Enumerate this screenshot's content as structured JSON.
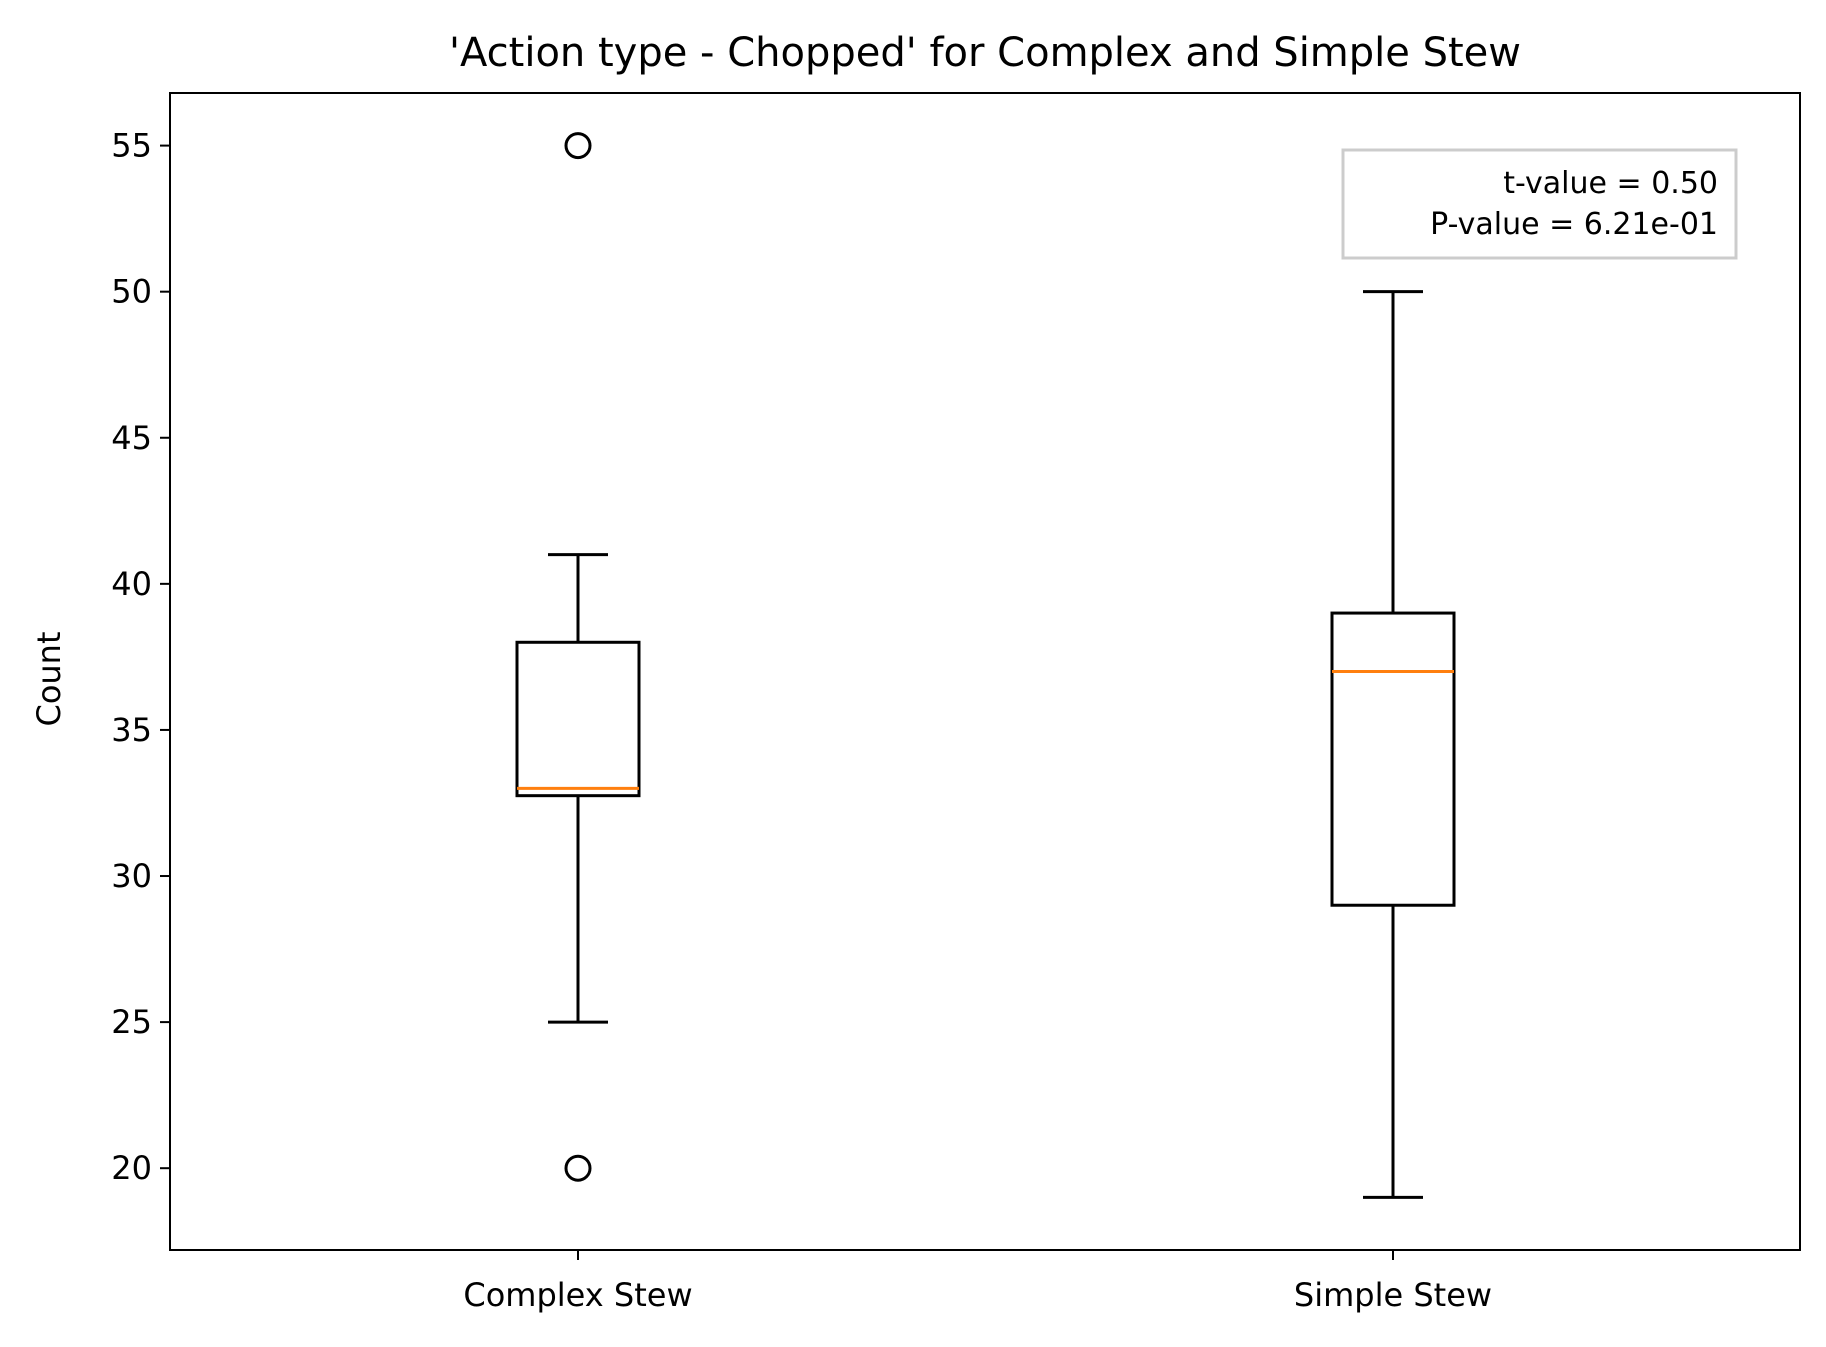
{
  "chart_data": {
    "type": "box",
    "title": "'Action type - Chopped' for Complex and Simple Stew",
    "xlabel": "",
    "ylabel": "Count",
    "ylim": [
      17.2,
      56.8
    ],
    "yticks": [
      20,
      25,
      30,
      35,
      40,
      45,
      50,
      55
    ],
    "categories": [
      "Complex Stew",
      "Simple Stew"
    ],
    "boxes": [
      {
        "category": "Complex Stew",
        "whisker_low": 25,
        "q1": 32.75,
        "median": 33,
        "q3": 38,
        "whisker_high": 41,
        "outliers": [
          55,
          20
        ]
      },
      {
        "category": "Simple Stew",
        "whisker_low": 19,
        "q1": 29,
        "median": 37,
        "q3": 39,
        "whisker_high": 50,
        "outliers": []
      }
    ],
    "annotation": {
      "lines": [
        "t-value = 0.50",
        "P-value = 6.21e-01"
      ],
      "placement": "top-right"
    },
    "colors": {
      "box": "#000000",
      "median": "#ff7f0e",
      "annotation_border": "#cccccc"
    },
    "grid": false,
    "legend": "none"
  }
}
